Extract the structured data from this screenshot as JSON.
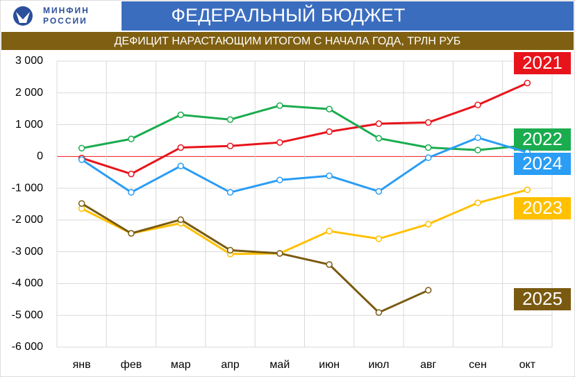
{
  "header": {
    "logo_line1": "МИНФИН",
    "logo_line2": "РОССИИ"
  },
  "chart_data": {
    "type": "line",
    "title": "ФЕДЕРАЛЬНЫЙ БЮДЖЕТ",
    "subtitle": "ДЕФИЦИТ НАРАСТАЮЩИМ ИТОГОМ С НАЧАЛА ГОДА, ТРЛН РУБ",
    "categories": [
      "янв",
      "фев",
      "мар",
      "апр",
      "май",
      "июн",
      "июл",
      "авг",
      "сен",
      "окт"
    ],
    "ylim": [
      -6000,
      3000
    ],
    "yticks": [
      {
        "value": -6000,
        "label": "-6 000"
      },
      {
        "value": -5000,
        "label": "-5 000"
      },
      {
        "value": -4000,
        "label": "-4 000"
      },
      {
        "value": -3000,
        "label": "-3 000"
      },
      {
        "value": -2000,
        "label": "-2 000"
      },
      {
        "value": -1000,
        "label": "-1 000"
      },
      0,
      {
        "value": 1000,
        "label": "1 000"
      },
      {
        "value": 2000,
        "label": "2 000"
      },
      {
        "value": 3000,
        "label": "3 000"
      }
    ],
    "grid": true,
    "series": [
      {
        "name": "2021",
        "color": "#e8141b",
        "values": [
          -50,
          -550,
          280,
          330,
          440,
          780,
          1030,
          1070,
          1620,
          2310
        ]
      },
      {
        "name": "2022",
        "color": "#1aac4e",
        "values": [
          260,
          550,
          1310,
          1160,
          1600,
          1490,
          570,
          280,
          200,
          350
        ]
      },
      {
        "name": "2024",
        "color": "#2a9df4",
        "values": [
          -100,
          -1130,
          -300,
          -1130,
          -740,
          -610,
          -1100,
          -40,
          590,
          130
        ]
      },
      {
        "name": "2023",
        "color": "#ffc000",
        "values": [
          -1640,
          -2420,
          -2100,
          -3070,
          -3050,
          -2350,
          -2590,
          -2130,
          -1460,
          -1050
        ]
      },
      {
        "name": "2025",
        "color": "#7a5a10",
        "values": [
          -1480,
          -2420,
          -1990,
          -2950,
          -3050,
          -3400,
          -4910,
          -4210,
          null,
          null
        ]
      }
    ]
  }
}
